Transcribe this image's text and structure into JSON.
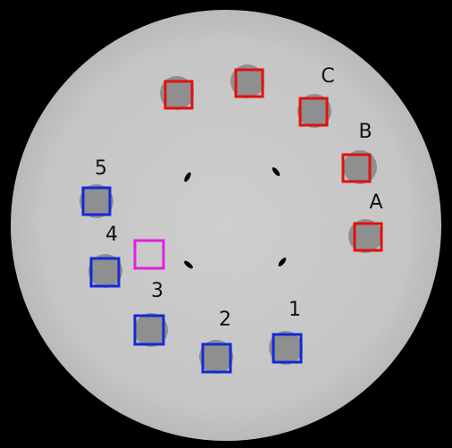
{
  "labels": [
    "C",
    "B",
    "A",
    "5",
    "4",
    "3",
    "2",
    "1"
  ]
}
